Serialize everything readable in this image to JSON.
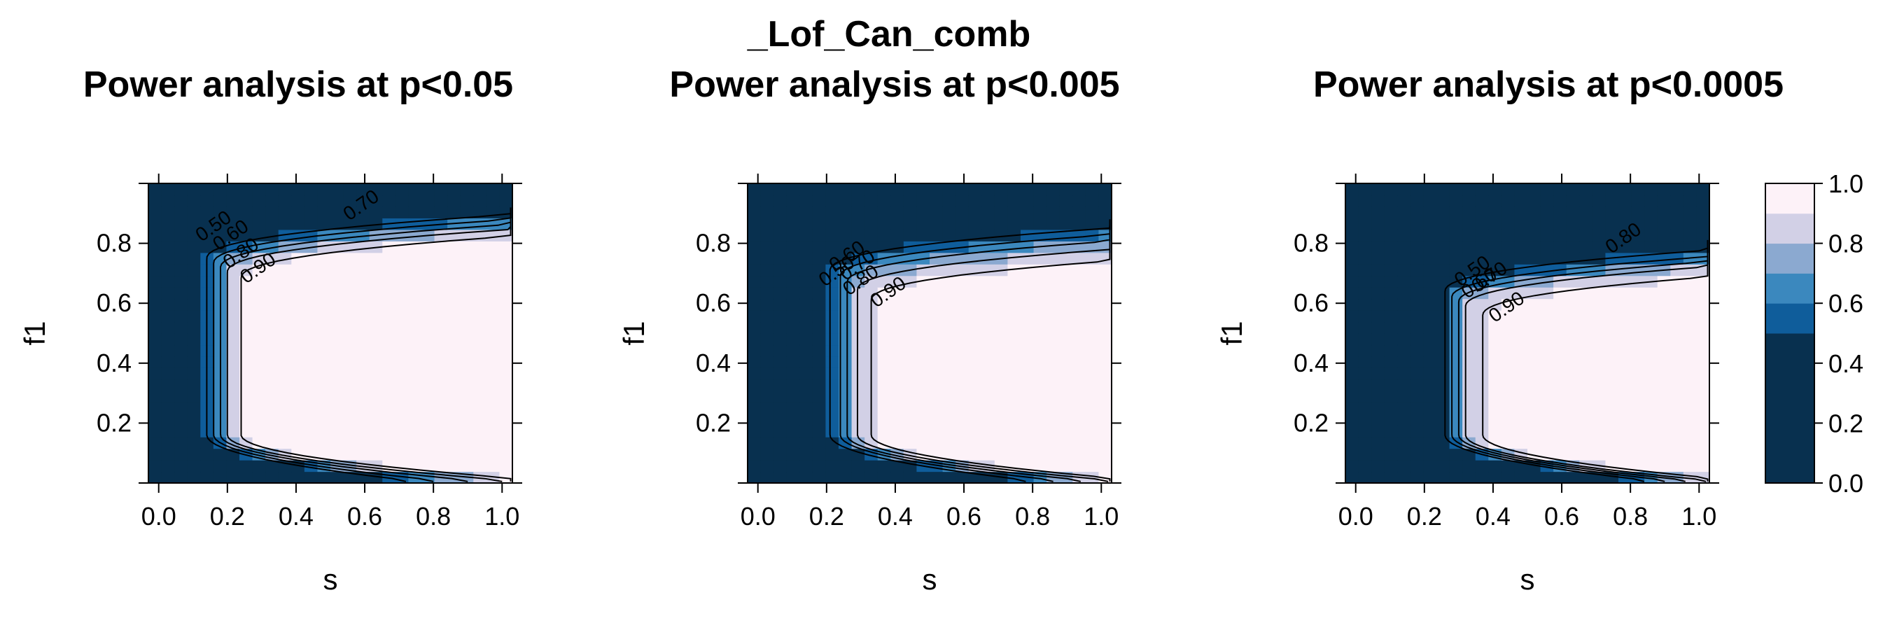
{
  "figure": {
    "main_title": "_Lof_Can_comb"
  },
  "colorbar": {
    "ticks": [
      0.0,
      0.2,
      0.4,
      0.6,
      0.8,
      1.0
    ],
    "tick_labels": [
      "0.0",
      "0.2",
      "0.4",
      "0.6",
      "0.8",
      "1.0"
    ],
    "levels": [
      0.0,
      0.5,
      0.6,
      0.7,
      0.8,
      0.9,
      1.0
    ],
    "colors": [
      "#08304f",
      "#0f5d9b",
      "#3b88be",
      "#8ba9d0",
      "#d2d0e6",
      "#fdf2f8"
    ]
  },
  "chart_data": [
    {
      "type": "heatmap",
      "title": "Power analysis at p<0.05",
      "xlabel": "s",
      "ylabel": "f1",
      "xlim": [
        -0.03,
        1.03
      ],
      "ylim": [
        0.0,
        1.0
      ],
      "xticks": [
        0.0,
        0.2,
        0.4,
        0.6,
        0.8,
        1.0
      ],
      "xtick_labels": [
        "0.0",
        "0.2",
        "0.4",
        "0.6",
        "0.8",
        "1.0"
      ],
      "yticks": [
        0.2,
        0.4,
        0.6,
        0.8
      ],
      "ytick_labels": [
        "0.2",
        "0.4",
        "0.6",
        "0.8"
      ],
      "contour_levels": [
        "0.50",
        "0.60",
        "0.70",
        "0.80",
        "0.90"
      ],
      "contour_labels": [
        {
          "text": "0.50",
          "x": 0.17,
          "y": 0.84
        },
        {
          "text": "0.60",
          "x": 0.22,
          "y": 0.81
        },
        {
          "text": "0.70",
          "x": 0.6,
          "y": 0.91
        },
        {
          "text": "0.80",
          "x": 0.25,
          "y": 0.75
        },
        {
          "text": "0.90",
          "x": 0.3,
          "y": 0.7
        }
      ],
      "boundaries": [
        {
          "level": 0.5,
          "s_left": 0.14,
          "f1_max": 0.93,
          "s_bottom": 0.72
        },
        {
          "level": 0.6,
          "s_left": 0.16,
          "f1_max": 0.915,
          "s_bottom": 0.8
        },
        {
          "level": 0.7,
          "s_left": 0.18,
          "f1_max": 0.9,
          "s_bottom": 0.9
        },
        {
          "level": 0.8,
          "s_left": 0.2,
          "f1_max": 0.885,
          "s_bottom": 1.0
        },
        {
          "level": 0.9,
          "s_left": 0.24,
          "f1_max": 0.865,
          "s_bottom": 1.1
        }
      ]
    },
    {
      "type": "heatmap",
      "title": "Power analysis at p<0.005",
      "xlabel": "s",
      "ylabel": "f1",
      "xlim": [
        -0.03,
        1.03
      ],
      "ylim": [
        0.0,
        1.0
      ],
      "xticks": [
        0.0,
        0.2,
        0.4,
        0.6,
        0.8,
        1.0
      ],
      "xtick_labels": [
        "0.0",
        "0.2",
        "0.4",
        "0.6",
        "0.8",
        "1.0"
      ],
      "yticks": [
        0.2,
        0.4,
        0.6,
        0.8
      ],
      "ytick_labels": [
        "0.2",
        "0.4",
        "0.6",
        "0.8"
      ],
      "contour_levels": [
        "0.50",
        "0.60",
        "0.70",
        "0.80",
        "0.90"
      ],
      "contour_labels": [
        {
          "text": "0.50",
          "x": 0.24,
          "y": 0.69
        },
        {
          "text": "0.60",
          "x": 0.27,
          "y": 0.74
        },
        {
          "text": "0.70",
          "x": 0.3,
          "y": 0.71
        },
        {
          "text": "0.80",
          "x": 0.31,
          "y": 0.66
        },
        {
          "text": "0.90",
          "x": 0.39,
          "y": 0.62
        }
      ],
      "boundaries": [
        {
          "level": 0.5,
          "s_left": 0.21,
          "f1_max": 0.89,
          "s_bottom": 0.78
        },
        {
          "level": 0.6,
          "s_left": 0.24,
          "f1_max": 0.87,
          "s_bottom": 0.86
        },
        {
          "level": 0.7,
          "s_left": 0.26,
          "f1_max": 0.85,
          "s_bottom": 0.94
        },
        {
          "level": 0.8,
          "s_left": 0.29,
          "f1_max": 0.825,
          "s_bottom": 1.02
        },
        {
          "level": 0.9,
          "s_left": 0.33,
          "f1_max": 0.79,
          "s_bottom": 1.1
        }
      ]
    },
    {
      "type": "heatmap",
      "title": "Power analysis at p<0.0005",
      "xlabel": "s",
      "ylabel": "f1",
      "xlim": [
        -0.03,
        1.03
      ],
      "ylim": [
        0.0,
        1.0
      ],
      "xticks": [
        0.0,
        0.2,
        0.4,
        0.6,
        0.8,
        1.0
      ],
      "xtick_labels": [
        "0.0",
        "0.2",
        "0.4",
        "0.6",
        "0.8",
        "1.0"
      ],
      "yticks": [
        0.2,
        0.4,
        0.6,
        0.8
      ],
      "ytick_labels": [
        "0.2",
        "0.4",
        "0.6",
        "0.8"
      ],
      "contour_levels": [
        "0.50",
        "0.60",
        "0.70",
        "0.80",
        "0.90"
      ],
      "contour_labels": [
        {
          "text": "0.50",
          "x": 0.35,
          "y": 0.69
        },
        {
          "text": "0.60",
          "x": 0.37,
          "y": 0.65
        },
        {
          "text": "0.70",
          "x": 0.4,
          "y": 0.67
        },
        {
          "text": "0.80",
          "x": 0.79,
          "y": 0.8
        },
        {
          "text": "0.90",
          "x": 0.45,
          "y": 0.57
        }
      ],
      "boundaries": [
        {
          "level": 0.5,
          "s_left": 0.26,
          "f1_max": 0.82,
          "s_bottom": 0.84
        },
        {
          "level": 0.6,
          "s_left": 0.28,
          "f1_max": 0.8,
          "s_bottom": 0.9
        },
        {
          "level": 0.7,
          "s_left": 0.3,
          "f1_max": 0.785,
          "s_bottom": 0.96
        },
        {
          "level": 0.8,
          "s_left": 0.32,
          "f1_max": 0.77,
          "s_bottom": 1.02
        },
        {
          "level": 0.9,
          "s_left": 0.37,
          "f1_max": 0.74,
          "s_bottom": 1.1
        }
      ]
    }
  ]
}
